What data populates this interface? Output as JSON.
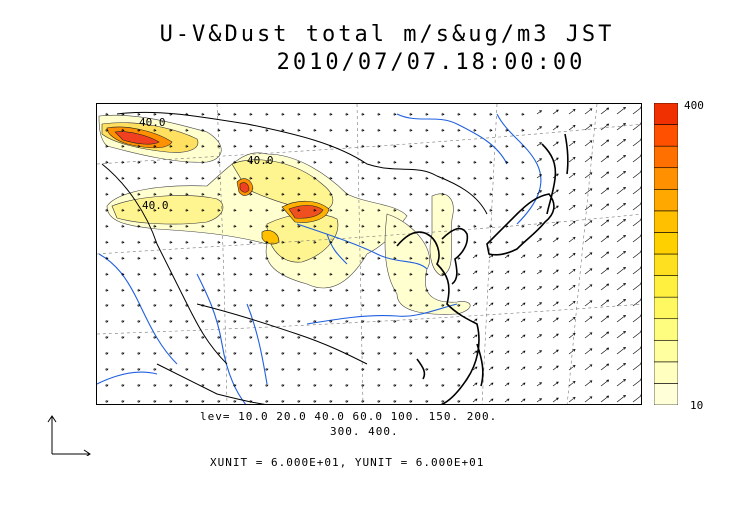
{
  "title": {
    "line1": "U-V&Dust total m/s&ug/m3 JST",
    "line2": "2010/07/07.18:00:00"
  },
  "colorbar": {
    "max_label": "400",
    "min_label": "10",
    "colors": [
      "#ffffd8",
      "#ffffc0",
      "#ffffa0",
      "#fffd80",
      "#fff860",
      "#fff040",
      "#ffe020",
      "#ffd000",
      "#ffc000",
      "#ffa800",
      "#ff9000",
      "#ff7000",
      "#ff5000",
      "#f03000"
    ]
  },
  "contour_labels": [
    "40.0",
    "40.0",
    "40.0"
  ],
  "levels": {
    "line1": "lev= 10.0 20.0 40.0 60.0 100. 150. 200.",
    "line2": "300. 400."
  },
  "units_text": "XUNIT = 6.000E+01, YUNIT = 6.000E+01"
}
